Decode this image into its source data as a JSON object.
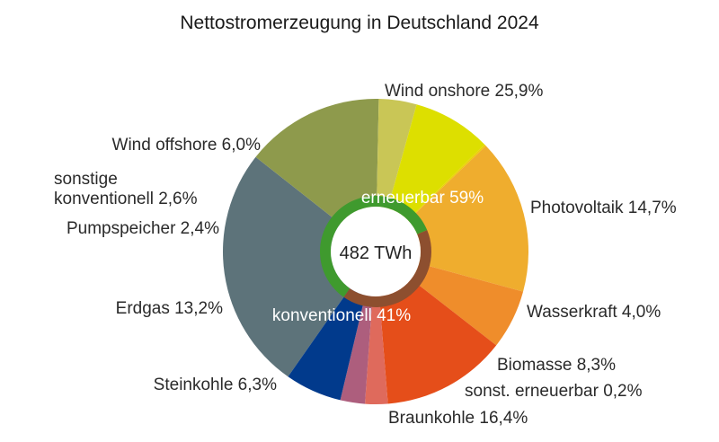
{
  "chart_data": {
    "type": "pie",
    "title": "Nettostromerzeugung in Deutschland 2024",
    "total_label": "482 TWh",
    "slices": [
      {
        "label": "Wind onshore 25,9%",
        "value": 25.9,
        "color": "#5d737a"
      },
      {
        "label": "Photovoltaik 14,7%",
        "value": 14.7,
        "color": "#8e9a4c"
      },
      {
        "label": "Wasserkraft 4,0%",
        "value": 4.0,
        "color": "#c9c656"
      },
      {
        "label": "Biomasse 8,3%",
        "value": 8.3,
        "color": "#dddf00"
      },
      {
        "label": "sonst. erneuerbar 0,2%",
        "value": 0.2,
        "color": "#eccf0b"
      },
      {
        "label": "Braunkohle 16,4%",
        "value": 16.4,
        "color": "#efad2e"
      },
      {
        "label": "Steinkohle 6,3%",
        "value": 6.3,
        "color": "#ef8d2b"
      },
      {
        "label": "Erdgas 13,2%",
        "value": 13.2,
        "color": "#e54e1a"
      },
      {
        "label": "Pumpspeicher 2,4%",
        "value": 2.4,
        "color": "#df6a5c"
      },
      {
        "label": "sonstige konventionell 2,6%",
        "value": 2.6,
        "color": "#ad5e7d"
      },
      {
        "label": "Wind offshore 6,0%",
        "value": 6.0,
        "color": "#013a8c"
      }
    ],
    "groups": [
      {
        "label": "erneuerbar 59%",
        "value": 59,
        "color": "#3f9a2e"
      },
      {
        "label": "konventionell 41%",
        "value": 41,
        "color": "#8d4f2f"
      }
    ]
  }
}
